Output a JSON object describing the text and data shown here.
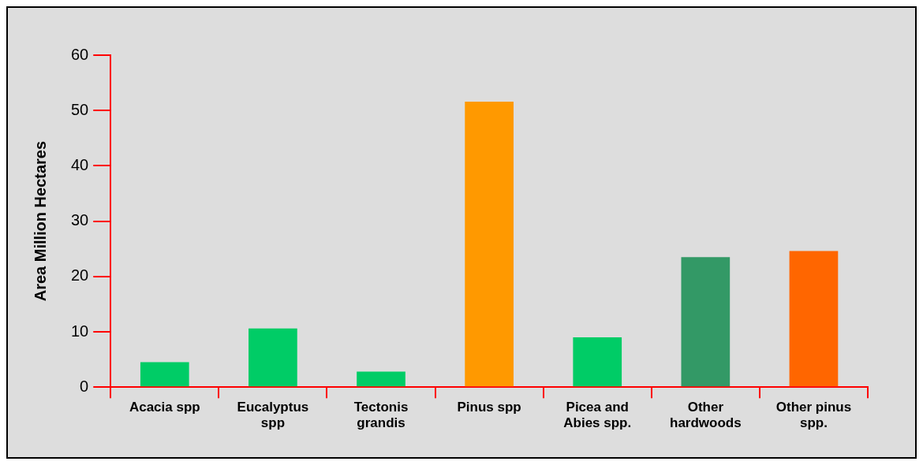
{
  "chart_data": {
    "type": "bar",
    "ylabel": "Area Million Hectares",
    "categories": [
      "Acacia spp",
      "Eucalyptus spp",
      "Tectonis grandis",
      "Pinus spp",
      "Picea and Abies spp.",
      "Other hardwoods",
      "Other pinus spp."
    ],
    "values": [
      4.5,
      10.6,
      2.8,
      51.6,
      9.0,
      23.5,
      24.6
    ],
    "colors": [
      "#00cc66",
      "#00cc66",
      "#00cc66",
      "#ff9900",
      "#00cc66",
      "#339966",
      "#ff6600"
    ],
    "ylim": [
      0,
      60
    ],
    "yticks": [
      0,
      10,
      20,
      30,
      40,
      50,
      60
    ],
    "grid": false,
    "legend": false
  }
}
